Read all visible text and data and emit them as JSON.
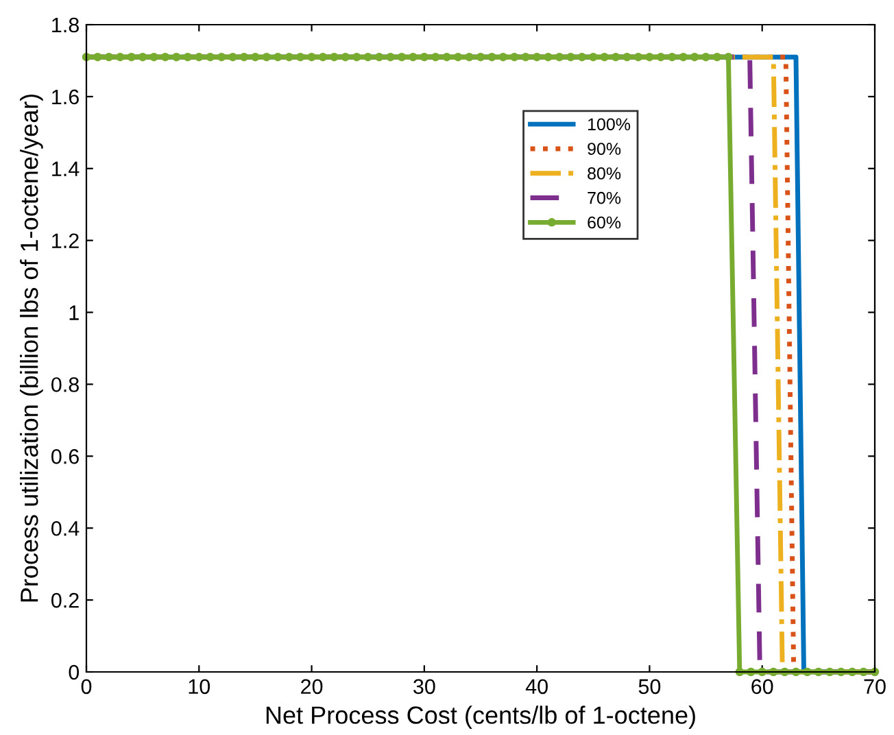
{
  "chart_data": {
    "type": "line",
    "xlabel": "Net Process Cost (cents/lb of 1-octene)",
    "ylabel": "Process utilization (billion lbs of 1-octene/year)",
    "xlim": [
      0,
      70
    ],
    "ylim": [
      0,
      1.8
    ],
    "xticks": [
      0,
      10,
      20,
      30,
      40,
      50,
      60,
      70
    ],
    "yticks": [
      0,
      0.2,
      0.4,
      0.6,
      0.8,
      1,
      1.2,
      1.4,
      1.6,
      1.8
    ],
    "grid": false,
    "legend": "top right",
    "series": [
      {
        "name": "100%",
        "color": "#0072bd",
        "line_style": "solid",
        "marker": "none",
        "x": [
          0,
          63.0,
          63.7,
          70
        ],
        "values": [
          1.71,
          1.71,
          0,
          0
        ]
      },
      {
        "name": "90%",
        "color": "#d95319",
        "line_style": "dotted",
        "marker": "none",
        "x": [
          0,
          62.1,
          62.8,
          70
        ],
        "values": [
          1.71,
          1.71,
          0,
          0
        ]
      },
      {
        "name": "80%",
        "color": "#edb120",
        "line_style": "dashdot",
        "marker": "none",
        "x": [
          0,
          61.0,
          61.8,
          70
        ],
        "values": [
          1.71,
          1.71,
          0,
          0
        ]
      },
      {
        "name": "70%",
        "color": "#7e2f8e",
        "line_style": "dashed",
        "marker": "none",
        "x": [
          0,
          58.9,
          59.8,
          70
        ],
        "values": [
          1.71,
          1.71,
          0,
          0
        ]
      },
      {
        "name": "60%",
        "color": "#77ac30",
        "line_style": "solid",
        "marker": "circle",
        "x": [
          0,
          1,
          2,
          3,
          4,
          5,
          6,
          7,
          8,
          9,
          10,
          11,
          12,
          13,
          14,
          15,
          16,
          17,
          18,
          19,
          20,
          21,
          22,
          23,
          24,
          25,
          26,
          27,
          28,
          29,
          30,
          31,
          32,
          33,
          34,
          35,
          36,
          37,
          38,
          39,
          40,
          41,
          42,
          43,
          44,
          45,
          46,
          47,
          48,
          49,
          50,
          51,
          52,
          53,
          54,
          55,
          56,
          57,
          58,
          59,
          60,
          61,
          62,
          63,
          64,
          65,
          66,
          67,
          68,
          69,
          70
        ],
        "values": [
          1.71,
          1.71,
          1.71,
          1.71,
          1.71,
          1.71,
          1.71,
          1.71,
          1.71,
          1.71,
          1.71,
          1.71,
          1.71,
          1.71,
          1.71,
          1.71,
          1.71,
          1.71,
          1.71,
          1.71,
          1.71,
          1.71,
          1.71,
          1.71,
          1.71,
          1.71,
          1.71,
          1.71,
          1.71,
          1.71,
          1.71,
          1.71,
          1.71,
          1.71,
          1.71,
          1.71,
          1.71,
          1.71,
          1.71,
          1.71,
          1.71,
          1.71,
          1.71,
          1.71,
          1.71,
          1.71,
          1.71,
          1.71,
          1.71,
          1.71,
          1.71,
          1.71,
          1.71,
          1.71,
          1.71,
          1.71,
          1.71,
          1.71,
          0,
          0,
          0,
          0,
          0,
          0,
          0,
          0,
          0,
          0,
          0,
          0,
          0
        ]
      }
    ]
  }
}
